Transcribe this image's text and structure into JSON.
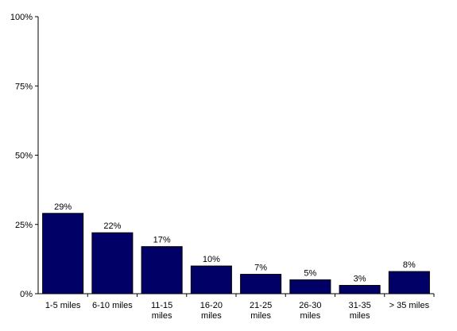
{
  "chart_data": {
    "type": "bar",
    "title": "",
    "xlabel": "",
    "ylabel": "",
    "categories": [
      [
        "1-5 miles"
      ],
      [
        "6-10 miles"
      ],
      [
        "11-15",
        "miles"
      ],
      [
        "16-20",
        "miles"
      ],
      [
        "21-25",
        "miles"
      ],
      [
        "26-30",
        "miles"
      ],
      [
        "31-35",
        "miles"
      ],
      [
        "> 35 miles"
      ]
    ],
    "values": [
      29,
      22,
      17,
      10,
      7,
      5,
      3,
      8
    ],
    "data_labels": [
      "29%",
      "22%",
      "17%",
      "10%",
      "7%",
      "5%",
      "3%",
      "8%"
    ],
    "ylim": [
      0,
      100
    ],
    "yticks": [
      0,
      25,
      50,
      75,
      100
    ],
    "ytick_labels": [
      "0%",
      "25%",
      "50%",
      "75%",
      "100%"
    ],
    "grid": false,
    "legend": "none",
    "bar_color": "#000066"
  }
}
